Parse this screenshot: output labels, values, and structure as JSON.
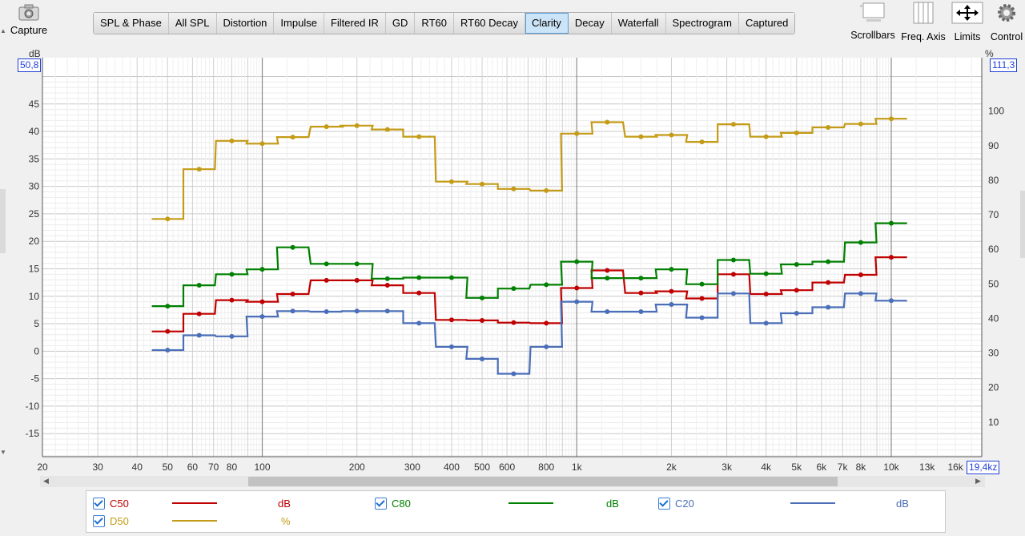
{
  "toolbar": {
    "capture_label": "Capture",
    "tabs": [
      "SPL & Phase",
      "All SPL",
      "Distortion",
      "Impulse",
      "Filtered IR",
      "GD",
      "RT60",
      "RT60 Decay",
      "Clarity",
      "Decay",
      "Waterfall",
      "Spectrogram",
      "Captured"
    ],
    "active_tab": "Clarity",
    "right_tools": [
      "Scrollbars",
      "Freq. Axis",
      "Limits",
      "Control"
    ]
  },
  "axes": {
    "left_unit": "dB",
    "right_unit": "%",
    "left_top_value": "50,8",
    "right_top_value": "111,3",
    "x_right_value": "19,4kz"
  },
  "chart_data": {
    "type": "line",
    "step": true,
    "x_scale": "log",
    "xlim": [
      20,
      19400
    ],
    "ylim_left": [
      -19.2,
      50.8
    ],
    "ylim_right": [
      0,
      111.3
    ],
    "grid": true,
    "x_tick_labels": [
      {
        "v": 20,
        "t": "20"
      },
      {
        "v": 30,
        "t": "30"
      },
      {
        "v": 40,
        "t": "40"
      },
      {
        "v": 50,
        "t": "50"
      },
      {
        "v": 60,
        "t": "60"
      },
      {
        "v": 70,
        "t": "70"
      },
      {
        "v": 80,
        "t": "80"
      },
      {
        "v": 100,
        "t": "100"
      },
      {
        "v": 200,
        "t": "200"
      },
      {
        "v": 300,
        "t": "300"
      },
      {
        "v": 400,
        "t": "400"
      },
      {
        "v": 500,
        "t": "500"
      },
      {
        "v": 600,
        "t": "600"
      },
      {
        "v": 800,
        "t": "800"
      },
      {
        "v": 1000,
        "t": "1k"
      },
      {
        "v": 2000,
        "t": "2k"
      },
      {
        "v": 3000,
        "t": "3k"
      },
      {
        "v": 4000,
        "t": "4k"
      },
      {
        "v": 5000,
        "t": "5k"
      },
      {
        "v": 6000,
        "t": "6k"
      },
      {
        "v": 7000,
        "t": "7k"
      },
      {
        "v": 8000,
        "t": "8k"
      },
      {
        "v": 10000,
        "t": "10k"
      },
      {
        "v": 13000,
        "t": "13k"
      },
      {
        "v": 16000,
        "t": "16k"
      }
    ],
    "y_left_ticks": [
      45,
      40,
      35,
      30,
      25,
      20,
      15,
      10,
      5,
      0,
      -5,
      -10,
      -15
    ],
    "y_right_ticks": [
      100,
      90,
      80,
      70,
      60,
      50,
      40,
      30,
      20,
      10
    ],
    "bands": [
      50,
      63,
      80,
      100,
      125,
      160,
      200,
      250,
      315,
      400,
      500,
      630,
      800,
      1000,
      1250,
      1600,
      2000,
      2500,
      3150,
      4000,
      5000,
      6300,
      8000,
      10000
    ],
    "series": [
      {
        "name": "C50",
        "axis": "left",
        "unit": "dB",
        "color": "#c00000",
        "values": [
          3.6,
          6.8,
          9.3,
          9.0,
          10.4,
          12.9,
          12.9,
          12.0,
          10.6,
          5.7,
          5.6,
          5.2,
          5.1,
          11.5,
          14.7,
          10.6,
          10.9,
          9.6,
          14.0,
          10.4,
          11.1,
          12.5,
          13.9,
          17.1
        ]
      },
      {
        "name": "C80",
        "axis": "left",
        "unit": "dB",
        "color": "#008000",
        "values": [
          8.2,
          12.0,
          14.0,
          14.9,
          18.9,
          15.9,
          15.9,
          13.2,
          13.4,
          13.4,
          9.7,
          11.4,
          12.1,
          16.3,
          13.3,
          13.3,
          14.9,
          12.2,
          16.6,
          14.1,
          15.8,
          16.3,
          19.8,
          23.3
        ]
      },
      {
        "name": "C20",
        "axis": "left",
        "unit": "dB",
        "color": "#4a6eb8",
        "values": [
          0.2,
          2.9,
          2.7,
          6.3,
          7.3,
          7.2,
          7.3,
          7.3,
          5.1,
          0.8,
          -1.4,
          -4.1,
          0.8,
          9.0,
          7.2,
          7.2,
          8.5,
          6.1,
          10.5,
          5.1,
          6.9,
          8.0,
          10.5,
          9.2
        ]
      },
      {
        "name": "D50",
        "axis": "right",
        "unit": "%",
        "color": "#c49b16",
        "values": [
          68.8,
          83.2,
          91.4,
          90.6,
          92.5,
          95.5,
          95.8,
          94.7,
          92.6,
          79.6,
          78.9,
          77.5,
          77.0,
          93.5,
          96.8,
          92.6,
          93.1,
          91.1,
          96.2,
          92.6,
          93.7,
          95.3,
          96.3,
          97.8
        ]
      }
    ]
  },
  "legend": [
    {
      "name": "C50",
      "unit": "dB",
      "color": "#c00000"
    },
    {
      "name": "C80",
      "unit": "dB",
      "color": "#008000"
    },
    {
      "name": "C20",
      "unit": "dB",
      "color": "#4a6eb8"
    },
    {
      "name": "D50",
      "unit": "%",
      "color": "#c49b16"
    }
  ]
}
